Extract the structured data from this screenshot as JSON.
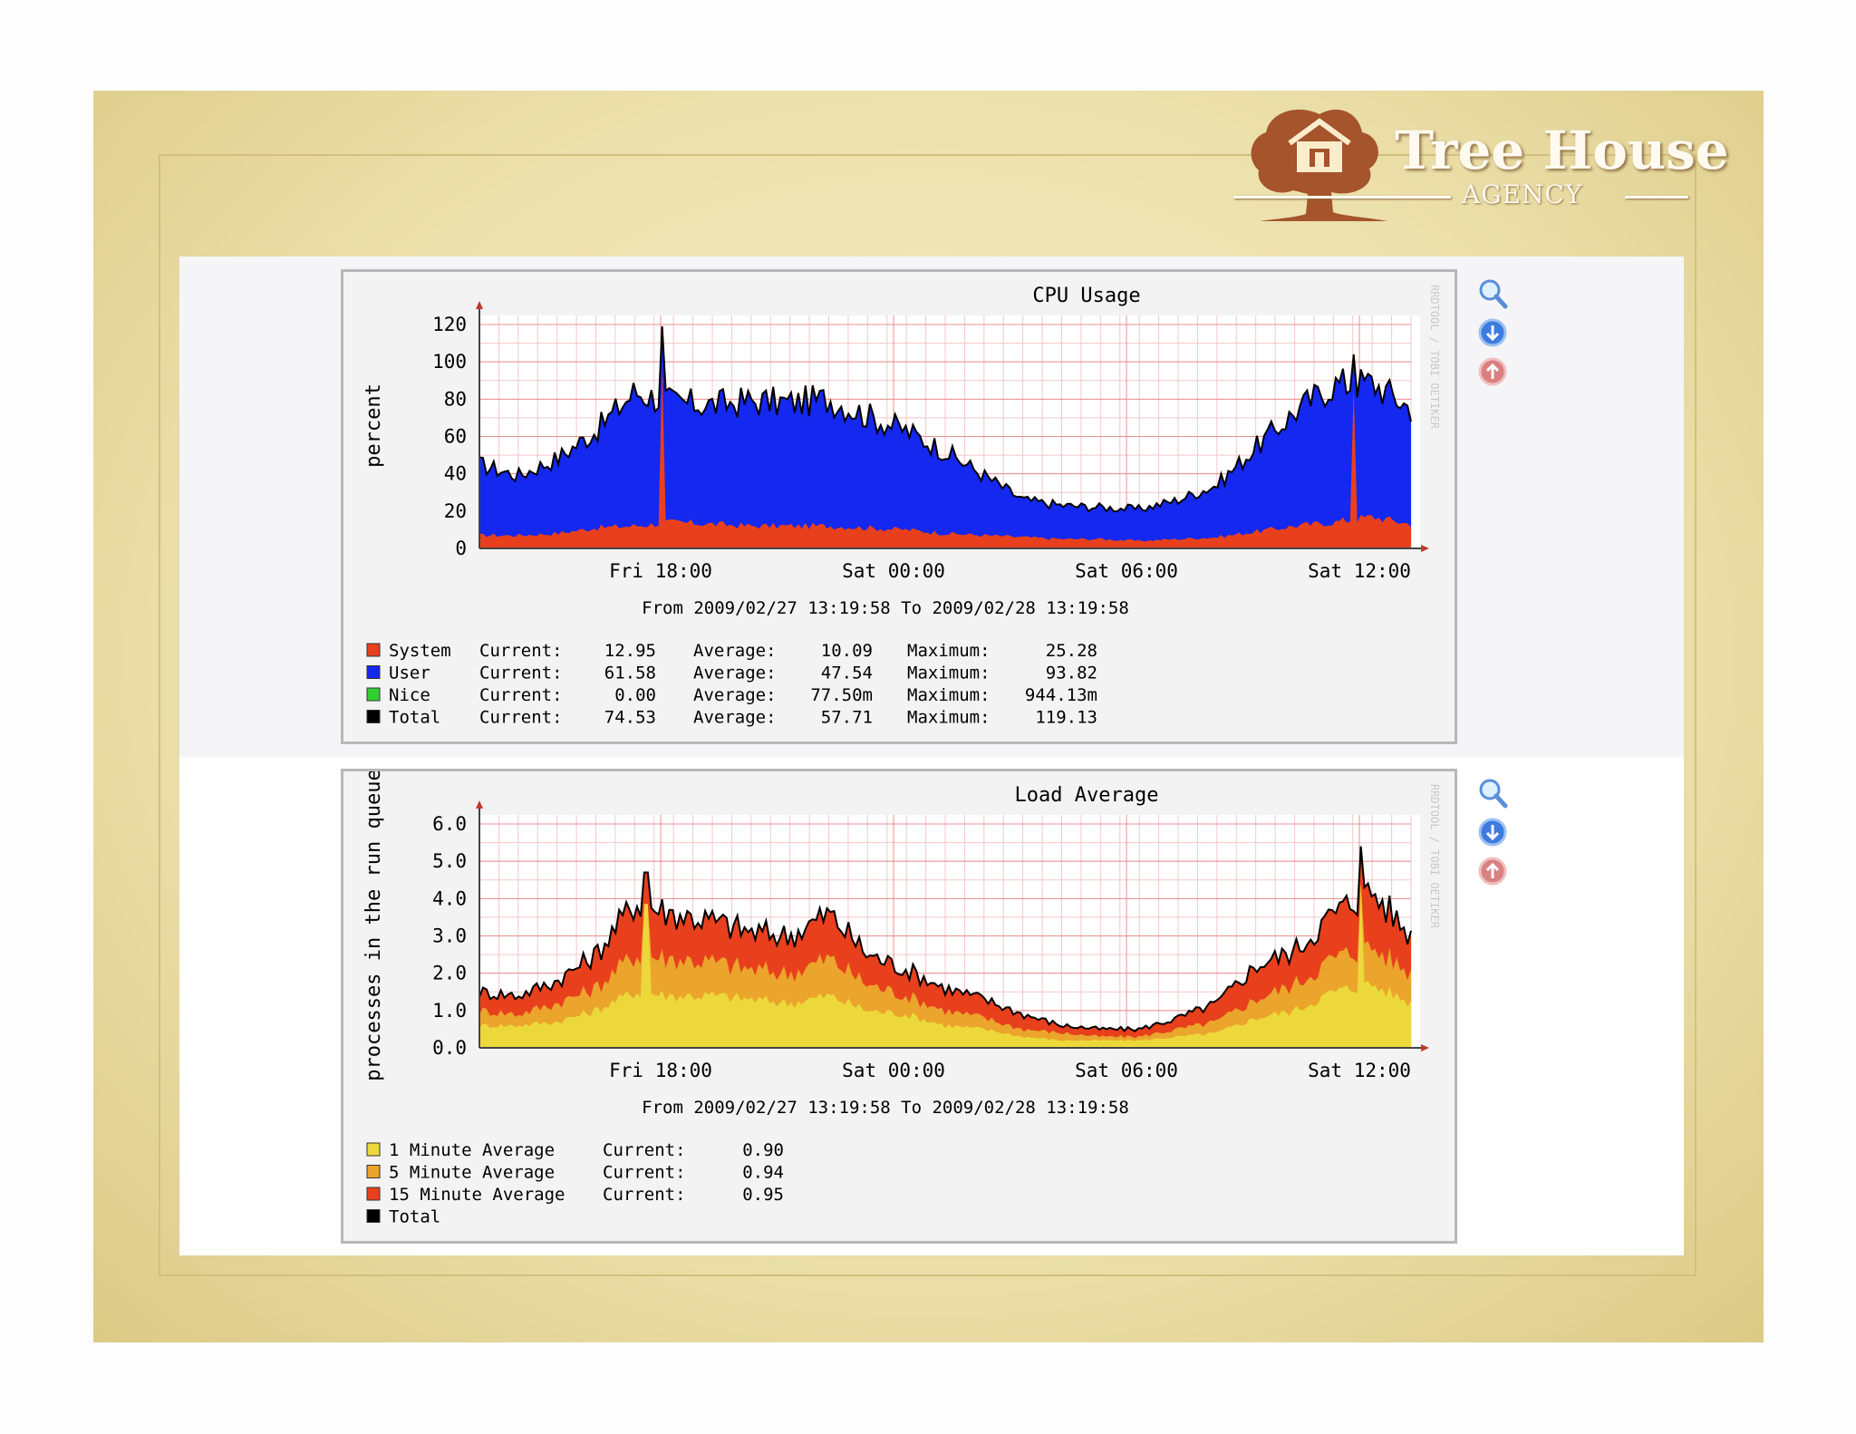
{
  "brand": {
    "title": "Tree House",
    "subtitle": "AGENCY"
  },
  "colors": {
    "slide_bg": "#ece0ab",
    "plot_bg": "#ffffff",
    "grid": "#f0a0a0",
    "system": "#e8401c",
    "user": "#1428f0",
    "nice": "#30d030",
    "total": "#000000",
    "one_min": "#ecd83a",
    "five_min": "#eba42c",
    "fifteen_min": "#e8401c"
  },
  "toolbar_icons": [
    "zoom-icon",
    "download-icon",
    "upload-icon"
  ],
  "chart_data": [
    {
      "type": "area",
      "title": "CPU Usage",
      "ylabel": "percent",
      "ylim": [
        0,
        120
      ],
      "yticks": [
        "0",
        "20",
        "40",
        "60",
        "80",
        "100",
        "120"
      ],
      "xticks": [
        "Fri 18:00",
        "Sat 00:00",
        "Sat 06:00",
        "Sat 12:00"
      ],
      "x_start": "2009/02/27 13:19:58",
      "x_end": "2009/02/28 13:19:58",
      "x_hours": [
        0,
        1,
        2,
        3,
        4,
        5,
        6,
        7,
        8,
        9,
        10,
        11,
        12,
        13,
        14,
        15,
        16,
        17,
        18,
        19,
        20,
        21,
        22,
        23,
        24
      ],
      "stacked": true,
      "grid": true,
      "period": "From 2009/02/27 13:19:58 To 2009/02/28 13:19:58",
      "watermark": "RRDTOOL / TOBI OETIKER",
      "series": [
        {
          "name": "System",
          "values": [
            7,
            7,
            8,
            11,
            12,
            14,
            13,
            12,
            12,
            12,
            11,
            10,
            8,
            7,
            6,
            5,
            5,
            4,
            5,
            6,
            9,
            12,
            14,
            17,
            13
          ]
        },
        {
          "name": "User",
          "values": [
            38,
            32,
            40,
            52,
            72,
            64,
            64,
            67,
            66,
            68,
            60,
            53,
            44,
            32,
            20,
            18,
            17,
            17,
            21,
            28,
            45,
            61,
            74,
            72,
            62
          ]
        },
        {
          "name": "Nice",
          "values": [
            0,
            0,
            0,
            0,
            0,
            0,
            0,
            0,
            0,
            0,
            0,
            0,
            0,
            0,
            0,
            0,
            0,
            0,
            0,
            0,
            0,
            0,
            0,
            0,
            0
          ]
        }
      ],
      "total_line": [
        45,
        39,
        48,
        63,
        84,
        78,
        77,
        79,
        78,
        80,
        71,
        63,
        52,
        39,
        26,
        23,
        22,
        21,
        26,
        34,
        54,
        73,
        88,
        89,
        75
      ],
      "spikes": [
        {
          "hour": 4.7,
          "value": 119
        },
        {
          "hour": 22.5,
          "value": 104
        }
      ],
      "legend": [
        {
          "name": "System",
          "current_label": "Current:",
          "current": "12.95",
          "average_label": "Average:",
          "average": "10.09",
          "maximum_label": "Maximum:",
          "maximum": "25.28"
        },
        {
          "name": "User",
          "current_label": "Current:",
          "current": "61.58",
          "average_label": "Average:",
          "average": "47.54",
          "maximum_label": "Maximum:",
          "maximum": "93.82"
        },
        {
          "name": "Nice",
          "current_label": "Current:",
          "current": "0.00",
          "average_label": "Average:",
          "average": "77.50m",
          "maximum_label": "Maximum:",
          "maximum": "944.13m"
        },
        {
          "name": "Total",
          "current_label": "Current:",
          "current": "74.53",
          "average_label": "Average:",
          "average": "57.71",
          "maximum_label": "Maximum:",
          "maximum": "119.13"
        }
      ]
    },
    {
      "type": "area",
      "title": "Load Average",
      "ylabel": "processes in the run queue",
      "ylim": [
        0,
        6
      ],
      "yticks": [
        "0.0",
        "1.0",
        "2.0",
        "3.0",
        "4.0",
        "5.0",
        "6.0"
      ],
      "xticks": [
        "Fri 18:00",
        "Sat 00:00",
        "Sat 06:00",
        "Sat 12:00"
      ],
      "x_start": "2009/02/27 13:19:58",
      "x_end": "2009/02/28 13:19:58",
      "x_hours": [
        0,
        1,
        2,
        3,
        4,
        5,
        6,
        7,
        8,
        9,
        10,
        11,
        12,
        13,
        14,
        15,
        16,
        17,
        18,
        19,
        20,
        21,
        22,
        23,
        24
      ],
      "stacked": false,
      "grid": true,
      "period": "From 2009/02/27 13:19:58 To 2009/02/28 13:19:58",
      "watermark": "RRDTOOL / TOBI OETIKER",
      "series": [
        {
          "name": "15 Minute Average",
          "values": [
            1.4,
            1.2,
            1.6,
            2.2,
            3.4,
            3.2,
            3.1,
            2.9,
            2.8,
            3.3,
            2.4,
            2.0,
            1.5,
            1.2,
            0.8,
            0.6,
            0.5,
            0.5,
            0.8,
            1.1,
            2.0,
            2.4,
            3.3,
            3.6,
            2.8
          ]
        },
        {
          "name": "5 Minute Average",
          "values": [
            1.0,
            0.9,
            1.2,
            1.6,
            2.5,
            2.4,
            2.3,
            2.1,
            2.0,
            2.4,
            1.7,
            1.4,
            1.0,
            0.8,
            0.5,
            0.4,
            0.3,
            0.3,
            0.5,
            0.7,
            1.3,
            1.7,
            2.4,
            2.7,
            2.0
          ]
        },
        {
          "name": "1 Minute Average",
          "values": [
            0.6,
            0.6,
            0.7,
            1.0,
            1.5,
            1.4,
            1.4,
            1.3,
            1.2,
            1.4,
            1.0,
            0.9,
            0.6,
            0.5,
            0.3,
            0.2,
            0.2,
            0.2,
            0.3,
            0.4,
            0.8,
            1.0,
            1.5,
            1.7,
            1.2
          ]
        }
      ],
      "total_line": [
        1.5,
        1.4,
        1.8,
        2.5,
        3.9,
        3.6,
        3.4,
        3.1,
        3.0,
        3.6,
        2.5,
        2.1,
        1.6,
        1.3,
        0.9,
        0.6,
        0.5,
        0.5,
        0.8,
        1.2,
        2.2,
        2.6,
        3.6,
        4.2,
        3.0
      ],
      "spikes": [
        {
          "hour": 4.3,
          "value": 4.7
        },
        {
          "hour": 22.7,
          "value": 5.4
        }
      ],
      "legend": [
        {
          "name": "1 Minute Average",
          "current_label": "Current:",
          "current": "0.90"
        },
        {
          "name": "5 Minute Average",
          "current_label": "Current:",
          "current": "0.94"
        },
        {
          "name": "15 Minute Average",
          "current_label": "Current:",
          "current": "0.95"
        },
        {
          "name": "Total"
        }
      ]
    }
  ]
}
